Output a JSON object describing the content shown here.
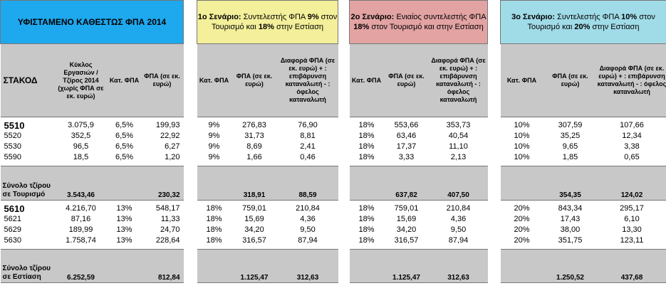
{
  "colors": {
    "blue_header": "#1ea8ee",
    "yellow_header": "#f3ef9a",
    "pink_header": "#e3a3a3",
    "cyan_header": "#a0dbe8",
    "gray": "#c8c8c8"
  },
  "current": {
    "title": "ΥΦΙΣΤΑΜΕΝΟ ΚΑΘΕΣΤΩΣ ΦΠΑ 2014",
    "col_stakod": "ΣΤΑΚΟΔ",
    "col_turnover": "Κύκλος Εργασιών / Τζίρος 2014 (χωρίς ΦΠΑ σε εκ. ευρώ)",
    "col_rate": "Κατ. ΦΠΑ",
    "col_vat": "ΦΠΑ (σε εκ. ευρώ)",
    "tourism_rows": [
      {
        "code": "5510",
        "turnover": "3.075,9",
        "rate": "6,5%",
        "vat": "199,93"
      },
      {
        "code": "5520",
        "turnover": "352,5",
        "rate": "6,5%",
        "vat": "22,92"
      },
      {
        "code": "5530",
        "turnover": "96,5",
        "rate": "6,5%",
        "vat": "6,27"
      },
      {
        "code": "5590",
        "turnover": "18,5",
        "rate": "6,5%",
        "vat": "1,20"
      }
    ],
    "tourism_total_label": "Σύνολο τζίρου σε Τουρισμό",
    "tourism_total_turnover": "3.543,46",
    "tourism_total_vat": "230,32",
    "catering_rows": [
      {
        "code": "5610",
        "turnover": "4.216,70",
        "rate": "13%",
        "vat": "548,17"
      },
      {
        "code": "5621",
        "turnover": "87,16",
        "rate": "13%",
        "vat": "11,33"
      },
      {
        "code": "5629",
        "turnover": "189,99",
        "rate": "13%",
        "vat": "24,70"
      },
      {
        "code": "5630",
        "turnover": "1.758,74",
        "rate": "13%",
        "vat": "228,64"
      }
    ],
    "catering_total_label": "Σύνολο τζίρου σε Εστίαση",
    "catering_total_turnover": "6.252,59",
    "catering_total_vat": "812,84"
  },
  "scenario1": {
    "title_bold": "1ο Σενάριο:",
    "title_p1": " Συντελεστής ΦΠΑ ",
    "title_b1": "9%",
    "title_p2": " στον Τουρισμό και ",
    "title_b2": "18%",
    "title_p3": " στην Εστίαση",
    "col_rate": "Κατ. ΦΠΑ",
    "col_vat": "ΦΠΑ (σε εκ. ευρώ)",
    "col_diff": "Διαφορά ΦΠΑ (σε εκ. ευρώ) + : επιβάρυνση καταναλωτή - : όφελος καταναλωτή",
    "tourism_rows": [
      {
        "rate": "9%",
        "vat": "276,83",
        "diff": "76,90"
      },
      {
        "rate": "9%",
        "vat": "31,73",
        "diff": "8,81"
      },
      {
        "rate": "9%",
        "vat": "8,69",
        "diff": "2,41"
      },
      {
        "rate": "9%",
        "vat": "1,66",
        "diff": "0,46"
      }
    ],
    "tourism_total_vat": "318,91",
    "tourism_total_diff": "88,59",
    "catering_rows": [
      {
        "rate": "18%",
        "vat": "759,01",
        "diff": "210,84"
      },
      {
        "rate": "18%",
        "vat": "15,69",
        "diff": "4,36"
      },
      {
        "rate": "18%",
        "vat": "34,20",
        "diff": "9,50"
      },
      {
        "rate": "18%",
        "vat": "316,57",
        "diff": "87,94"
      }
    ],
    "catering_total_vat": "1.125,47",
    "catering_total_diff": "312,63"
  },
  "scenario2": {
    "title_bold": "2ο Σενάριο:",
    "title_p1": " Ενιαίος συντελεστής ΦΠΑ ",
    "title_b1": "18%",
    "title_p2": " στον Τουρισμό και στην Εστίαση",
    "col_rate": "Κατ. ΦΠΑ",
    "col_vat": "ΦΠΑ (σε εκ. ευρώ)",
    "col_diff": "Διαφορά ΦΠΑ (σε εκ. ευρώ) + : επιβάρυνση καταναλωτή - : όφελος καταναλωτή",
    "tourism_rows": [
      {
        "rate": "18%",
        "vat": "553,66",
        "diff": "353,73"
      },
      {
        "rate": "18%",
        "vat": "63,46",
        "diff": "40,54"
      },
      {
        "rate": "18%",
        "vat": "17,37",
        "diff": "11,10"
      },
      {
        "rate": "18%",
        "vat": "3,33",
        "diff": "2,13"
      }
    ],
    "tourism_total_vat": "637,82",
    "tourism_total_diff": "407,50",
    "catering_rows": [
      {
        "rate": "18%",
        "vat": "759,01",
        "diff": "210,84"
      },
      {
        "rate": "18%",
        "vat": "15,69",
        "diff": "4,36"
      },
      {
        "rate": "18%",
        "vat": "34,20",
        "diff": "9,50"
      },
      {
        "rate": "18%",
        "vat": "316,57",
        "diff": "87,94"
      }
    ],
    "catering_total_vat": "1.125,47",
    "catering_total_diff": "312,63"
  },
  "scenario3": {
    "title_bold": "3ο Σενάριο:",
    "title_p1": " Συντελεστής ΦΠΑ ",
    "title_b1": "10%",
    "title_p2": " στον Τουρισμό και ",
    "title_b2": "20%",
    "title_p3": " στην Εστίαση",
    "col_rate": "Κατ. ΦΠΑ",
    "col_vat": "ΦΠΑ (σε εκ. ευρώ)",
    "col_diff": "Διαφορά ΦΠΑ (σε εκ. ευρώ) + : επιβάρυνση καταναλωτή - : όφελος καταναλωτή",
    "tourism_rows": [
      {
        "rate": "10%",
        "vat": "307,59",
        "diff": "107,66"
      },
      {
        "rate": "10%",
        "vat": "35,25",
        "diff": "12,34"
      },
      {
        "rate": "10%",
        "vat": "9,65",
        "diff": "3,38"
      },
      {
        "rate": "10%",
        "vat": "1,85",
        "diff": "0,65"
      }
    ],
    "tourism_total_vat": "354,35",
    "tourism_total_diff": "124,02",
    "catering_rows": [
      {
        "rate": "20%",
        "vat": "843,34",
        "diff": "295,17"
      },
      {
        "rate": "20%",
        "vat": "17,43",
        "diff": "6,10"
      },
      {
        "rate": "20%",
        "vat": "38,00",
        "diff": "13,30"
      },
      {
        "rate": "20%",
        "vat": "351,75",
        "diff": "123,11"
      }
    ],
    "catering_total_vat": "1.250,52",
    "catering_total_diff": "437,68"
  }
}
